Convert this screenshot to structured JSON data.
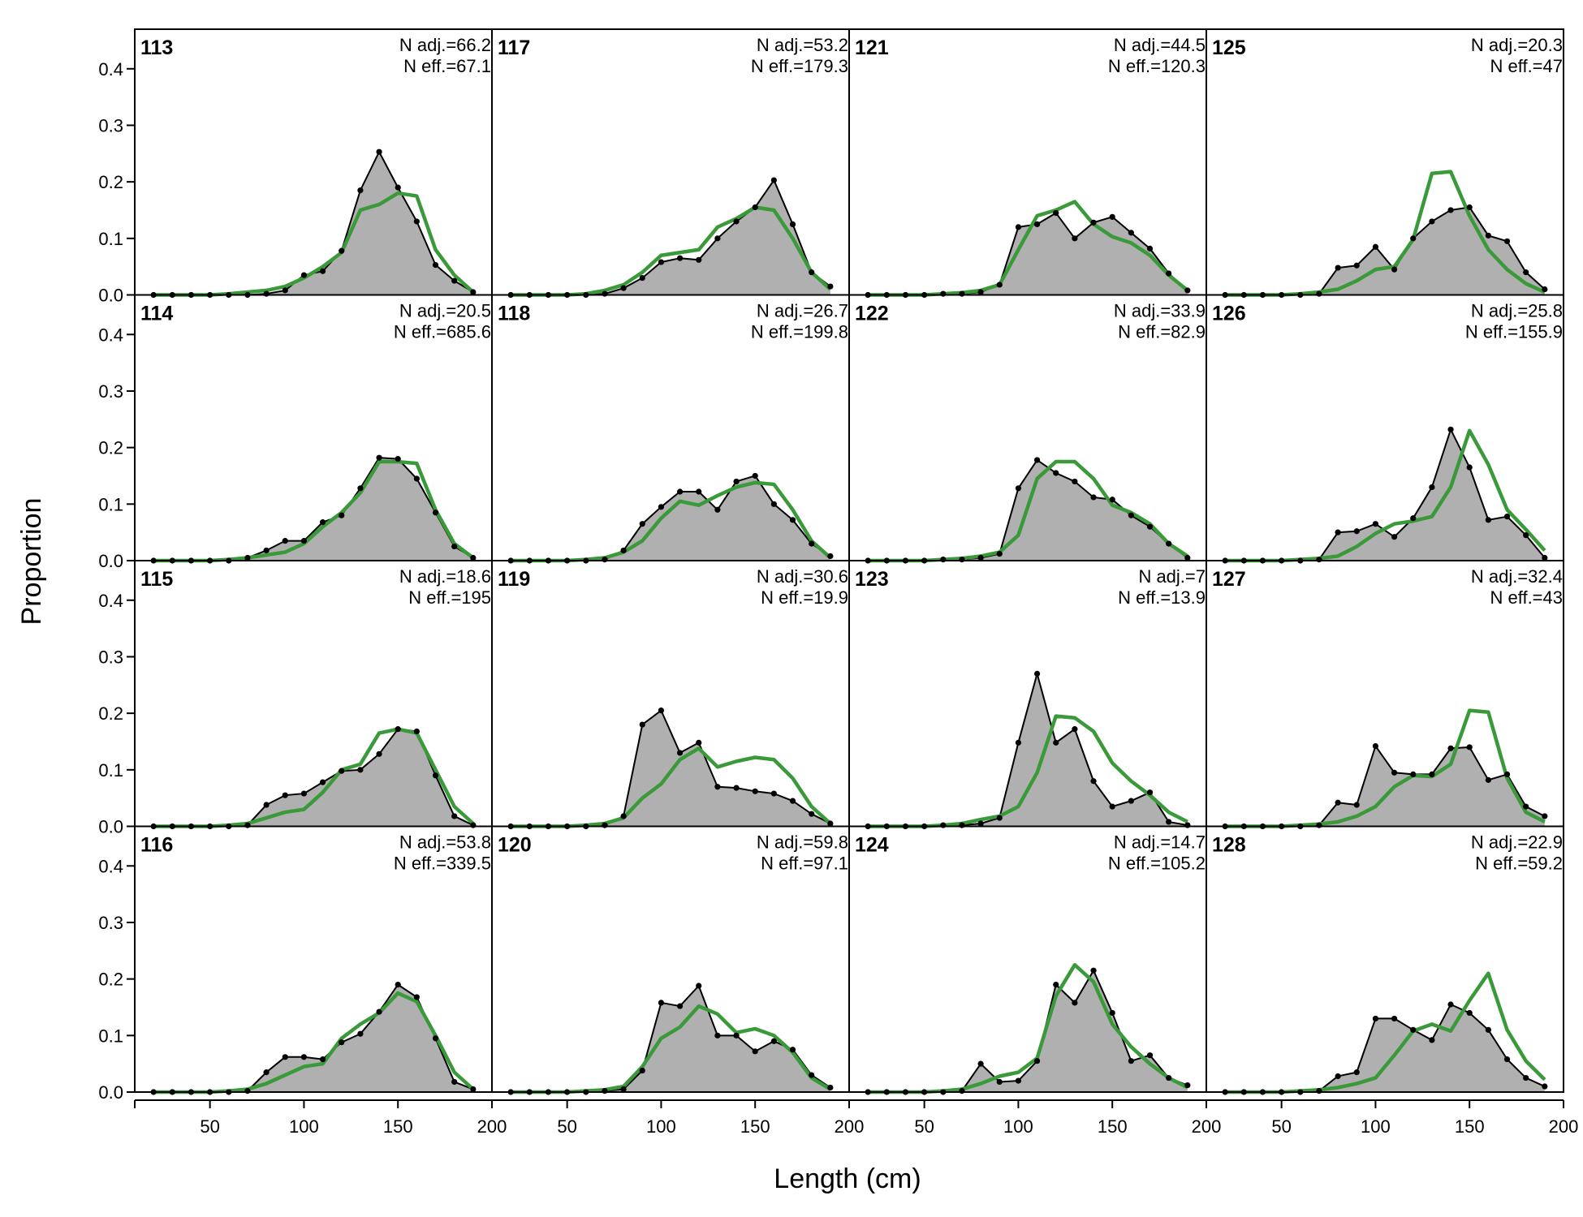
{
  "chart_data": {
    "type": "line",
    "xlabel": "Length (cm)",
    "ylabel": "Proportion",
    "xlim": [
      10,
      200
    ],
    "ylim": [
      0,
      0.47
    ],
    "x_ticks": [
      50,
      100,
      150,
      200
    ],
    "y_ticks": [
      0.0,
      0.1,
      0.2,
      0.3,
      0.4
    ],
    "y_tick_labels": [
      "0.0",
      "0.1",
      "0.2",
      "0.3",
      "0.4"
    ],
    "x": [
      20,
      30,
      40,
      50,
      60,
      70,
      80,
      90,
      100,
      110,
      120,
      130,
      140,
      150,
      160,
      170,
      180,
      190
    ],
    "observed_color": "#000000",
    "observed_fill": "#b0b0b0",
    "expected_color": "#3a9a3a",
    "grid": false,
    "panels": [
      {
        "title": "113",
        "n_adj": "N adj.=66.2",
        "n_eff": "N eff.=67.1",
        "observed": [
          0,
          0,
          0,
          0,
          0,
          0,
          0.002,
          0.008,
          0.035,
          0.042,
          0.078,
          0.185,
          0.253,
          0.19,
          0.13,
          0.053,
          0.025,
          0.005
        ],
        "expected": [
          0,
          0,
          0,
          0,
          0.002,
          0.005,
          0.008,
          0.015,
          0.03,
          0.05,
          0.075,
          0.15,
          0.16,
          0.18,
          0.175,
          0.08,
          0.035,
          0.005
        ]
      },
      {
        "title": "114",
        "n_adj": "N adj.=20.5",
        "n_eff": "N eff.=685.6",
        "observed": [
          0,
          0,
          0,
          0,
          0,
          0.005,
          0.018,
          0.035,
          0.035,
          0.068,
          0.08,
          0.128,
          0.182,
          0.18,
          0.145,
          0.085,
          0.025,
          0.005
        ],
        "expected": [
          0,
          0,
          0,
          0,
          0.002,
          0.005,
          0.01,
          0.015,
          0.03,
          0.06,
          0.085,
          0.12,
          0.175,
          0.175,
          0.172,
          0.09,
          0.03,
          0.005
        ]
      },
      {
        "title": "115",
        "n_adj": "N adj.=18.6",
        "n_eff": "N eff.=195",
        "observed": [
          0,
          0,
          0,
          0,
          0,
          0.002,
          0.038,
          0.055,
          0.058,
          0.078,
          0.098,
          0.1,
          0.128,
          0.172,
          0.168,
          0.09,
          0.018,
          0.002
        ],
        "expected": [
          0,
          0,
          0,
          0,
          0.002,
          0.005,
          0.015,
          0.025,
          0.03,
          0.06,
          0.1,
          0.11,
          0.165,
          0.172,
          0.165,
          0.1,
          0.035,
          0.005
        ]
      },
      {
        "title": "116",
        "n_adj": "N adj.=53.8",
        "n_eff": "N eff.=339.5",
        "observed": [
          0,
          0,
          0,
          0,
          0,
          0.002,
          0.035,
          0.062,
          0.062,
          0.058,
          0.088,
          0.103,
          0.142,
          0.19,
          0.168,
          0.095,
          0.018,
          0.005
        ],
        "expected": [
          0,
          0,
          0,
          0,
          0.002,
          0.005,
          0.015,
          0.03,
          0.045,
          0.05,
          0.095,
          0.12,
          0.14,
          0.175,
          0.16,
          0.1,
          0.035,
          0.005
        ]
      },
      {
        "title": "117",
        "n_adj": "N adj.=53.2",
        "n_eff": "N eff.=179.3",
        "observed": [
          0,
          0,
          0,
          0,
          0,
          0.002,
          0.012,
          0.03,
          0.058,
          0.065,
          0.062,
          0.1,
          0.13,
          0.155,
          0.203,
          0.125,
          0.04,
          0.015
        ],
        "expected": [
          0,
          0,
          0,
          0,
          0.002,
          0.008,
          0.018,
          0.04,
          0.07,
          0.075,
          0.08,
          0.12,
          0.135,
          0.155,
          0.15,
          0.1,
          0.04,
          0.01
        ]
      },
      {
        "title": "118",
        "n_adj": "N adj.=26.7",
        "n_eff": "N eff.=199.8",
        "observed": [
          0,
          0,
          0,
          0,
          0,
          0.002,
          0.018,
          0.065,
          0.095,
          0.122,
          0.122,
          0.09,
          0.14,
          0.15,
          0.1,
          0.072,
          0.03,
          0.008
        ],
        "expected": [
          0,
          0,
          0,
          0,
          0.002,
          0.005,
          0.015,
          0.035,
          0.075,
          0.105,
          0.098,
          0.115,
          0.13,
          0.138,
          0.135,
          0.09,
          0.035,
          0.005
        ]
      },
      {
        "title": "119",
        "n_adj": "N adj.=30.6",
        "n_eff": "N eff.=19.9",
        "observed": [
          0,
          0,
          0,
          0,
          0,
          0.002,
          0.018,
          0.18,
          0.205,
          0.13,
          0.148,
          0.07,
          0.068,
          0.062,
          0.058,
          0.045,
          0.022,
          0.005
        ],
        "expected": [
          0,
          0,
          0,
          0,
          0.002,
          0.005,
          0.015,
          0.05,
          0.075,
          0.118,
          0.138,
          0.105,
          0.115,
          0.122,
          0.118,
          0.085,
          0.035,
          0.005
        ]
      },
      {
        "title": "120",
        "n_adj": "N adj.=59.8",
        "n_eff": "N eff.=97.1",
        "observed": [
          0,
          0,
          0,
          0,
          0,
          0.002,
          0.005,
          0.038,
          0.158,
          0.152,
          0.188,
          0.1,
          0.1,
          0.072,
          0.09,
          0.075,
          0.03,
          0.008
        ],
        "expected": [
          0,
          0,
          0,
          0,
          0.002,
          0.004,
          0.01,
          0.045,
          0.095,
          0.115,
          0.152,
          0.138,
          0.105,
          0.112,
          0.1,
          0.07,
          0.025,
          0.005
        ]
      },
      {
        "title": "121",
        "n_adj": "N adj.=44.5",
        "n_eff": "N eff.=120.3",
        "observed": [
          0,
          0,
          0,
          0,
          0.002,
          0.002,
          0.005,
          0.018,
          0.12,
          0.125,
          0.145,
          0.1,
          0.128,
          0.138,
          0.11,
          0.082,
          0.038,
          0.008
        ],
        "expected": [
          0,
          0,
          0,
          0,
          0.002,
          0.004,
          0.008,
          0.018,
          0.08,
          0.14,
          0.15,
          0.165,
          0.125,
          0.103,
          0.092,
          0.07,
          0.035,
          0.008
        ]
      },
      {
        "title": "122",
        "n_adj": "N adj.=33.9",
        "n_eff": "N eff.=82.9",
        "observed": [
          0,
          0,
          0,
          0,
          0.002,
          0.002,
          0.005,
          0.012,
          0.128,
          0.178,
          0.155,
          0.14,
          0.112,
          0.108,
          0.08,
          0.06,
          0.03,
          0.005
        ],
        "expected": [
          0,
          0,
          0,
          0,
          0.002,
          0.004,
          0.008,
          0.015,
          0.045,
          0.145,
          0.175,
          0.175,
          0.145,
          0.098,
          0.085,
          0.065,
          0.03,
          0.008
        ]
      },
      {
        "title": "123",
        "n_adj": "N adj.=7",
        "n_eff": "N eff.=13.9",
        "observed": [
          0,
          0,
          0,
          0,
          0.002,
          0.002,
          0.005,
          0.015,
          0.148,
          0.27,
          0.148,
          0.172,
          0.08,
          0.035,
          0.045,
          0.06,
          0.008,
          0.002
        ],
        "expected": [
          0,
          0,
          0,
          0,
          0.002,
          0.005,
          0.012,
          0.018,
          0.035,
          0.095,
          0.195,
          0.192,
          0.168,
          0.112,
          0.08,
          0.055,
          0.025,
          0.008
        ]
      },
      {
        "title": "124",
        "n_adj": "N adj.=14.7",
        "n_eff": "N eff.=105.2",
        "observed": [
          0,
          0,
          0,
          0,
          0,
          0.002,
          0.05,
          0.018,
          0.02,
          0.055,
          0.19,
          0.158,
          0.215,
          0.14,
          0.055,
          0.065,
          0.025,
          0.012
        ],
        "expected": [
          0,
          0,
          0,
          0,
          0.002,
          0.005,
          0.015,
          0.028,
          0.035,
          0.06,
          0.17,
          0.225,
          0.195,
          0.12,
          0.08,
          0.05,
          0.025,
          0.008
        ]
      },
      {
        "title": "125",
        "n_adj": "N adj.=20.3",
        "n_eff": "N eff.=47",
        "observed": [
          0,
          0,
          0,
          0,
          0,
          0.002,
          0.048,
          0.052,
          0.085,
          0.045,
          0.1,
          0.13,
          0.15,
          0.155,
          0.105,
          0.095,
          0.04,
          0.01
        ],
        "expected": [
          0,
          0,
          0,
          0,
          0.002,
          0.005,
          0.01,
          0.025,
          0.045,
          0.05,
          0.098,
          0.215,
          0.218,
          0.14,
          0.08,
          0.045,
          0.02,
          0.005
        ]
      },
      {
        "title": "126",
        "n_adj": "N adj.=25.8",
        "n_eff": "N eff.=155.9",
        "observed": [
          0,
          0,
          0,
          0,
          0,
          0.002,
          0.05,
          0.052,
          0.065,
          0.042,
          0.075,
          0.13,
          0.232,
          0.165,
          0.072,
          0.078,
          0.045,
          0.005
        ],
        "expected": [
          0,
          0,
          0,
          0,
          0.002,
          0.004,
          0.008,
          0.025,
          0.048,
          0.065,
          0.07,
          0.078,
          0.13,
          0.23,
          0.17,
          0.09,
          0.055,
          0.018
        ]
      },
      {
        "title": "127",
        "n_adj": "N adj.=32.4",
        "n_eff": "N eff.=43",
        "observed": [
          0,
          0,
          0,
          0,
          0,
          0.002,
          0.042,
          0.038,
          0.142,
          0.095,
          0.092,
          0.092,
          0.138,
          0.14,
          0.082,
          0.092,
          0.035,
          0.018
        ],
        "expected": [
          0,
          0,
          0,
          0,
          0.002,
          0.004,
          0.008,
          0.018,
          0.035,
          0.07,
          0.09,
          0.088,
          0.11,
          0.205,
          0.202,
          0.085,
          0.025,
          0.008
        ]
      },
      {
        "title": "128",
        "n_adj": "N adj.=22.9",
        "n_eff": "N eff.=59.2",
        "observed": [
          0,
          0,
          0,
          0,
          0,
          0.002,
          0.028,
          0.035,
          0.13,
          0.13,
          0.11,
          0.092,
          0.155,
          0.14,
          0.11,
          0.058,
          0.025,
          0.01
        ],
        "expected": [
          0,
          0,
          0,
          0,
          0.002,
          0.004,
          0.008,
          0.015,
          0.025,
          0.065,
          0.108,
          0.12,
          0.108,
          0.162,
          0.21,
          0.11,
          0.055,
          0.022
        ]
      }
    ]
  }
}
